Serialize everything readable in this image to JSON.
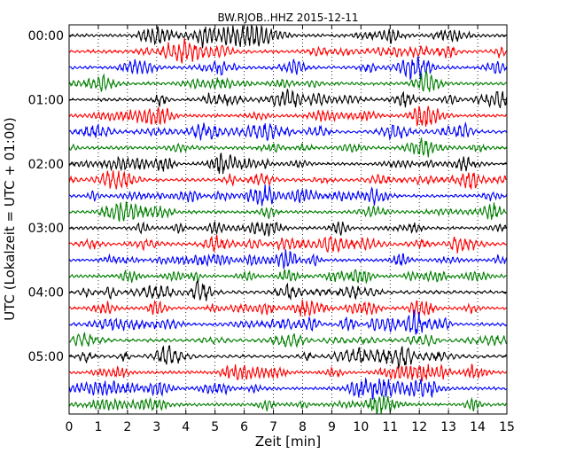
{
  "chart_data": {
    "type": "line",
    "title": "BW.RJOB..HHZ 2015-12-11",
    "xlabel": "Zeit  [min]",
    "ylabel": "UTC (Lokalzeit = UTC + 01:00)",
    "xlim": [
      0,
      15
    ],
    "x_ticks": [
      "0",
      "1",
      "2",
      "3",
      "4",
      "5",
      "6",
      "7",
      "8",
      "9",
      "10",
      "11",
      "12",
      "13",
      "14",
      "15"
    ],
    "y_ticks": [
      "00:00",
      "01:00",
      "02:00",
      "03:00",
      "04:00",
      "05:00"
    ],
    "grid_x": true,
    "grid_style": "dotted",
    "trace_count": 24,
    "trace_interval_min": 15,
    "trace_colors": [
      "#000000",
      "#ff0000",
      "#0000ff",
      "#007f00"
    ]
  }
}
